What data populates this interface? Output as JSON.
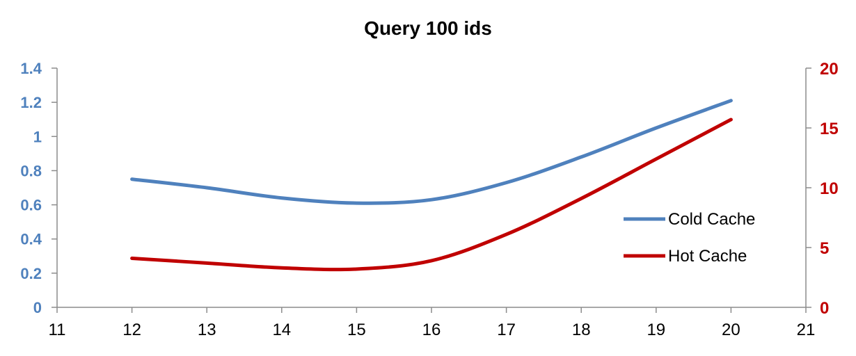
{
  "chart_data": {
    "type": "line",
    "title": "Query 100 ids",
    "x": [
      12,
      13,
      14,
      15,
      16,
      17,
      18,
      19,
      20
    ],
    "xlim": [
      11,
      21
    ],
    "xticks": [
      "11",
      "12",
      "13",
      "14",
      "15",
      "16",
      "17",
      "18",
      "19",
      "20",
      "21"
    ],
    "y_left": {
      "ylim": [
        0,
        1.4
      ],
      "ticks": [
        "0",
        "0.2",
        "0.4",
        "0.6",
        "0.8",
        "1",
        "1.2",
        "1.4"
      ],
      "color": "#4f81bd"
    },
    "y_right": {
      "ylim": [
        0,
        20
      ],
      "ticks": [
        "0",
        "5",
        "10",
        "15",
        "20"
      ],
      "color": "#c00000"
    },
    "series": [
      {
        "name": "Cold Cache",
        "axis": "left",
        "color": "#4f81bd",
        "values": [
          0.75,
          0.7,
          0.64,
          0.61,
          0.63,
          0.73,
          0.88,
          1.05,
          1.21
        ]
      },
      {
        "name": "Hot Cache",
        "axis": "right",
        "color": "#c00000",
        "values": [
          4.1,
          3.7,
          3.3,
          3.2,
          3.9,
          6.1,
          9.1,
          12.4,
          15.7
        ]
      }
    ],
    "legend_position": "right",
    "grid": false
  }
}
